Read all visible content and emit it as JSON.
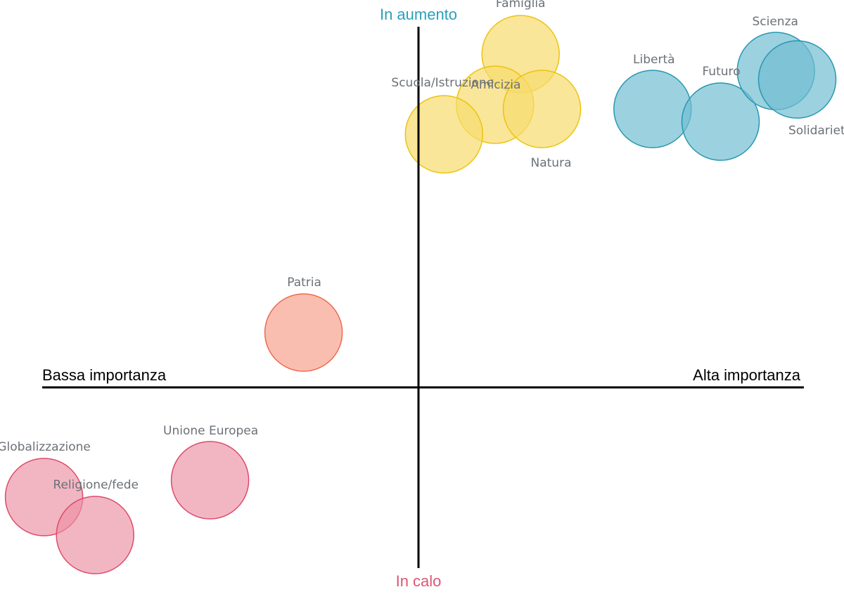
{
  "chart_data": {
    "type": "scatter",
    "axes": {
      "x_negative_label": "Bassa importanza",
      "x_positive_label": "Alta importanza",
      "y_positive_label": "In aumento",
      "y_negative_label": "In calo",
      "xlim": [
        -1,
        1
      ],
      "ylim": [
        -1,
        1
      ],
      "grid": false
    },
    "colors": {
      "in_aumento": "#2aa0bb",
      "in_calo": "#e05575",
      "yellow_fill": "#f6dc6e",
      "yellow_stroke": "#ecc30f",
      "blue_fill": "#72bdd1",
      "blue_stroke": "#2797b1",
      "orange_fill": "#f8a897",
      "orange_stroke": "#ee6a4a",
      "pink_fill": "#eb8fa3",
      "pink_stroke": "#dd4a6a",
      "label": "#6c7176"
    },
    "points": [
      {
        "label": "Famiglia",
        "x": 0.24,
        "y": 0.79,
        "group": "yellow"
      },
      {
        "label": "Amicizia",
        "x": 0.18,
        "y": 0.67,
        "group": "yellow"
      },
      {
        "label": "Scuola/Istruzione",
        "x": 0.06,
        "y": 0.6,
        "group": "yellow"
      },
      {
        "label": "Natura",
        "x": 0.29,
        "y": 0.66,
        "group": "yellow"
      },
      {
        "label": "Libertà",
        "x": 0.55,
        "y": 0.66,
        "group": "blue"
      },
      {
        "label": "Futuro",
        "x": 0.71,
        "y": 0.63,
        "group": "blue"
      },
      {
        "label": "Scienza",
        "x": 0.84,
        "y": 0.75,
        "group": "blue"
      },
      {
        "label": "Solidarietà",
        "x": 0.89,
        "y": 0.73,
        "group": "blue"
      },
      {
        "label": "Patria",
        "x": -0.27,
        "y": 0.13,
        "group": "orange"
      },
      {
        "label": "Unione Europea",
        "x": -0.49,
        "y": -0.22,
        "group": "pink"
      },
      {
        "label": "Globalizzazione",
        "x": -0.88,
        "y": -0.26,
        "group": "pink"
      },
      {
        "label": "Religione/fede",
        "x": -0.76,
        "y": -0.35,
        "group": "pink"
      }
    ]
  }
}
